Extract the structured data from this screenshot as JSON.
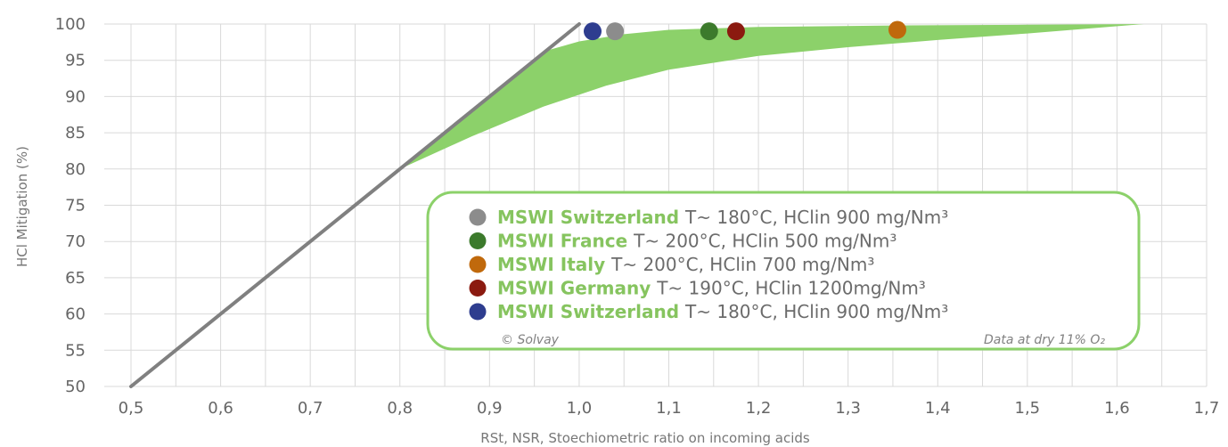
{
  "chart_data": {
    "type": "scatter",
    "xlabel": "RSt, NSR, Stoechiometric ratio on incoming acids",
    "ylabel": "HCl Mitigation (%)",
    "xlim": [
      0.5,
      1.7
    ],
    "ylim": [
      50,
      100
    ],
    "x_ticks": [
      "0,5",
      "0,6",
      "0,7",
      "0,8",
      "0,9",
      "1,0",
      "1,1",
      "1,2",
      "1,3",
      "1,4",
      "1,5",
      "1,6",
      "1,7"
    ],
    "y_ticks": [
      "50",
      "55",
      "60",
      "65",
      "70",
      "75",
      "80",
      "85",
      "90",
      "95",
      "100"
    ],
    "grid": true,
    "reference_line": {
      "x": [
        0.5,
        1.0
      ],
      "y": [
        50,
        100
      ],
      "color": "#808080"
    },
    "band": {
      "color": "#8cd16a",
      "upper": [
        [
          0.8,
          80
        ],
        [
          0.86,
          86
        ],
        [
          0.92,
          92
        ],
        [
          0.96,
          96.2
        ],
        [
          1.0,
          97.6
        ],
        [
          1.05,
          98.6
        ],
        [
          1.1,
          99.2
        ],
        [
          1.2,
          99.6
        ],
        [
          1.35,
          99.8
        ],
        [
          1.5,
          99.9
        ],
        [
          1.63,
          100
        ]
      ],
      "lower": [
        [
          0.8,
          80
        ],
        [
          0.88,
          84.5
        ],
        [
          0.96,
          88.6
        ],
        [
          1.03,
          91.5
        ],
        [
          1.1,
          93.7
        ],
        [
          1.2,
          95.6
        ],
        [
          1.3,
          96.8
        ],
        [
          1.4,
          97.8
        ],
        [
          1.5,
          98.7
        ],
        [
          1.63,
          100
        ]
      ]
    },
    "series": [
      {
        "name": "MSWI Switzerland",
        "description": "T~ 180°C, HClin 900 mg/Nm³",
        "color": "#8c8c8c",
        "points": [
          [
            1.04,
            99.0
          ]
        ]
      },
      {
        "name": "MSWI France",
        "description": "T~ 200°C, HClin 500 mg/Nm³",
        "color": "#3c7a2c",
        "points": [
          [
            1.145,
            99.0
          ]
        ]
      },
      {
        "name": "MSWI Italy",
        "description": "T~ 200°C, HClin 700 mg/Nm³",
        "color": "#c0690c",
        "points": [
          [
            1.355,
            99.2
          ]
        ]
      },
      {
        "name": "MSWI Germany",
        "description": "T~ 190°C, HClin 1200mg/Nm³",
        "color": "#8b1a10",
        "points": [
          [
            1.175,
            99.0
          ]
        ]
      },
      {
        "name": "MSWI Switzerland",
        "description": "T~ 180°C, HClin 900 mg/Nm³",
        "color": "#2e3d8f",
        "points": [
          [
            1.015,
            99.0
          ]
        ]
      }
    ],
    "legend_placement": "center-right",
    "legend_border_color": "#8cd16a",
    "legend_name_color": "#86c45f",
    "footnote_left": "© Solvay",
    "footnote_right": "Data at dry 11% O₂"
  }
}
